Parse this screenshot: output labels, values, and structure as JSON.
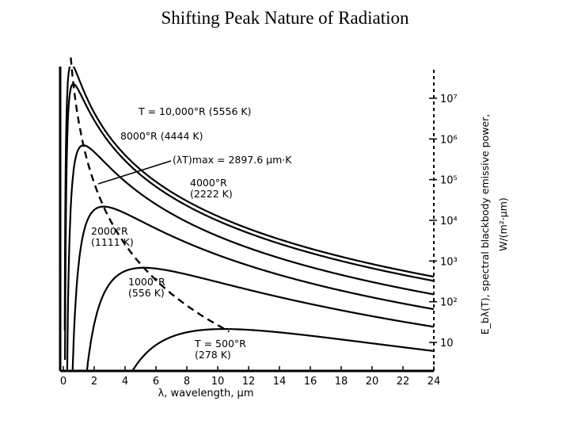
{
  "slide": {
    "title": "Shifting Peak Nature of Radiation"
  },
  "chart_data": {
    "type": "line",
    "title": "",
    "xlabel": "λ, wavelength, μm",
    "ylabel": "E_bλ(T), spectral blackbody emissive power, W/(m²·μm)",
    "ylabel_line1": "E_bλ(T), spectral blackbody emissive power,",
    "ylabel_line2": "W/(m²·μm)",
    "xlim": [
      0,
      24
    ],
    "ylim_log10": [
      0.3,
      7.7
    ],
    "x_ticks": [
      0,
      2,
      4,
      6,
      8,
      10,
      12,
      14,
      16,
      18,
      20,
      22,
      24
    ],
    "x_tick_labels": [
      "0",
      "2",
      "4",
      "6",
      "8",
      "10",
      "12",
      "14",
      "16",
      "18",
      "20",
      "22",
      "24"
    ],
    "y_ticks": [
      10,
      100,
      1000,
      10000,
      100000,
      1000000,
      10000000
    ],
    "y_tick_labels": [
      "10",
      "10²",
      "10³",
      "10⁴",
      "10⁵",
      "10⁶",
      "10⁷"
    ],
    "series": [
      {
        "name": "T = 10,000°R (5556 K)",
        "label_line1": "T = 10,000°R (5556 K)",
        "label_line2": "",
        "T_K": 5556
      },
      {
        "name": "8000°R (4444 K)",
        "label_line1": "8000°R (4444 K)",
        "label_line2": "",
        "T_K": 4444
      },
      {
        "name": "4000°R (2222 K)",
        "label_line1": "4000°R",
        "label_line2": "(2222 K)",
        "T_K": 2222
      },
      {
        "name": "2000°R (1111 K)",
        "label_line1": "2000°R",
        "label_line2": "(1111 K)",
        "T_K": 1111
      },
      {
        "name": "1000°R (556 K)",
        "label_line1": "1000°R",
        "label_line2": "(556 K)",
        "T_K": 556
      },
      {
        "name": "T = 500°R (278 K)",
        "label_line1": "T = 500°R",
        "label_line2": "(278 K)",
        "T_K": 278
      }
    ],
    "annotation": {
      "text": "(λT)max = 2897.6 μm·K",
      "constant": 2897.6
    }
  }
}
